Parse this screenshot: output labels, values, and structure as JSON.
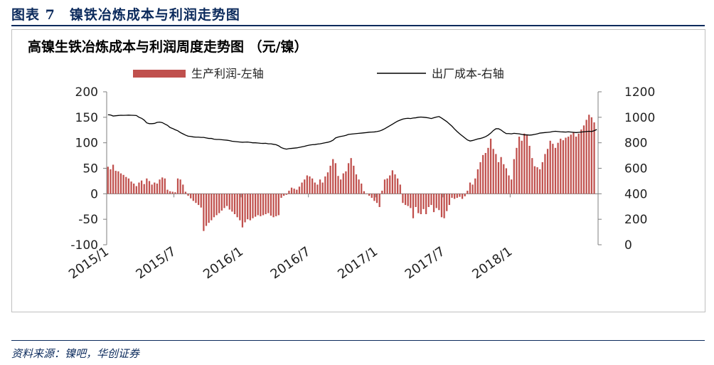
{
  "figure": {
    "title": "图表 7　镍铁冶炼成本与利润走势图",
    "source": "资料来源：镍吧，华创证券"
  },
  "colors": {
    "bar": "#c0504d",
    "line": "#000000",
    "header": "#0b2a5c"
  },
  "chart_data": {
    "type": "bar+line",
    "title": "高镍生铁冶炼成本与利润周度走势图  （元/镍）",
    "legend_position": "top",
    "left_axis": {
      "ylim": [
        -100,
        200
      ],
      "ticks": [
        "200",
        "150",
        "100",
        "50",
        "0",
        "-50",
        "-100"
      ]
    },
    "right_axis": {
      "ylim": [
        0,
        1200
      ],
      "ticks": [
        "1200",
        "1000",
        "800",
        "600",
        "400",
        "200",
        "0"
      ]
    },
    "x_tick_labels": [
      "2015/1",
      "2015/7",
      "2016/1",
      "2016/7",
      "2017/1",
      "2017/7",
      "2018/1"
    ],
    "x_start": "2015/1",
    "x_interval": "week",
    "series": [
      {
        "name": "生产利润-左轴",
        "type": "bar",
        "axis": "left",
        "values": [
          53,
          48,
          57,
          45,
          44,
          40,
          37,
          33,
          30,
          24,
          20,
          15,
          22,
          26,
          19,
          30,
          25,
          18,
          22,
          20,
          28,
          32,
          30,
          8,
          5,
          4,
          3,
          30,
          28,
          18,
          4,
          -4,
          -9,
          -14,
          -18,
          -22,
          -27,
          -73,
          -63,
          -57,
          -52,
          -46,
          -42,
          -38,
          -33,
          -28,
          -24,
          -31,
          -35,
          -40,
          -46,
          -52,
          -66,
          -56,
          -50,
          -52,
          -48,
          -45,
          -42,
          -44,
          -42,
          -40,
          -38,
          -43,
          -46,
          -44,
          -42,
          -8,
          -4,
          -2,
          6,
          12,
          10,
          8,
          14,
          22,
          28,
          36,
          34,
          30,
          22,
          18,
          28,
          22,
          34,
          42,
          55,
          68,
          60,
          35,
          28,
          40,
          44,
          60,
          70,
          55,
          38,
          28,
          20,
          5,
          0,
          -4,
          -8,
          -14,
          -18,
          -26,
          6,
          28,
          30,
          36,
          46,
          38,
          30,
          18,
          -18,
          -22,
          -24,
          -28,
          -48,
          -26,
          -38,
          -40,
          -30,
          -40,
          -26,
          -22,
          -36,
          -28,
          -32,
          -46,
          -48,
          -34,
          -22,
          -8,
          -10,
          -8,
          -6,
          -10,
          -5,
          6,
          22,
          18,
          30,
          48,
          62,
          76,
          80,
          90,
          108,
          88,
          78,
          62,
          72,
          58,
          50,
          36,
          28,
          68,
          90,
          112,
          104,
          118,
          116,
          94,
          70,
          54,
          52,
          48,
          62,
          78,
          88,
          104,
          98,
          90,
          100,
          108,
          105,
          110,
          112,
          116,
          120,
          112,
          118,
          126,
          134,
          145,
          155,
          150,
          140
        ]
      },
      {
        "name": "出厂成本-右轴",
        "type": "line",
        "axis": "right",
        "values": [
          1020,
          1018,
          1010,
          1012,
          1014,
          1016,
          1015,
          1016,
          1017,
          1016,
          1015,
          1014,
          1000,
          992,
          978,
          956,
          950,
          950,
          952,
          960,
          962,
          958,
          947,
          937,
          920,
          912,
          902,
          894,
          880,
          870,
          860,
          852,
          850,
          846,
          844,
          844,
          842,
          842,
          838,
          834,
          834,
          828,
          826,
          826,
          824,
          822,
          820,
          817,
          812,
          810,
          808,
          806,
          804,
          805,
          806,
          803,
          800,
          800,
          798,
          796,
          795,
          796,
          792,
          792,
          788,
          785,
          776,
          762,
          755,
          750,
          754,
          756,
          758,
          760,
          764,
          768,
          772,
          778,
          782,
          785,
          786,
          790,
          792,
          796,
          800,
          804,
          810,
          820,
          838,
          845,
          850,
          853,
          858,
          866,
          868,
          870,
          872,
          874,
          876,
          878,
          880,
          883,
          884,
          885,
          888,
          892,
          900,
          910,
          922,
          934,
          946,
          958,
          970,
          978,
          986,
          990,
          992,
          990,
          994,
          996,
          1000,
          1002,
          1000,
          998,
          995,
          990,
          996,
          1002,
          1006,
          994,
          980,
          966,
          948,
          930,
          908,
          888,
          870,
          854,
          838,
          822,
          814,
          818,
          824,
          830,
          834,
          840,
          848,
          860,
          876,
          896,
          910,
          910,
          900,
          884,
          872,
          872,
          870,
          874,
          872,
          870,
          866,
          862,
          862,
          860,
          862,
          866,
          870,
          876,
          878,
          880,
          882,
          884,
          888,
          890,
          888,
          886,
          885,
          884,
          886,
          884,
          882,
          880,
          882,
          884,
          886,
          888,
          890,
          888,
          895,
          904
        ]
      }
    ]
  }
}
